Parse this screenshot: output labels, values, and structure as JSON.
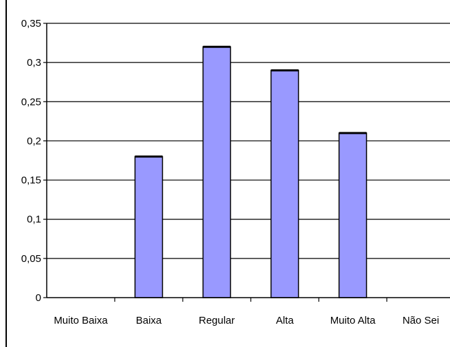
{
  "chart_data": {
    "type": "bar",
    "title": "",
    "xlabel": "",
    "ylabel": "",
    "categories": [
      "Muito Baixa",
      "Baixa",
      "Regular",
      "Alta",
      "Muito Alta",
      "Não Sei"
    ],
    "values": [
      0,
      0.18,
      0.32,
      0.29,
      0.21,
      0
    ],
    "ylim": [
      0,
      0.35
    ],
    "yticks": [
      0,
      0.05,
      0.1,
      0.15,
      0.2,
      0.25,
      0.3,
      0.35
    ],
    "ytick_labels": [
      "0",
      "0,05",
      "0,1",
      "0,15",
      "0,2",
      "0,25",
      "0,3",
      "0,35"
    ],
    "grid": true,
    "legend": "none",
    "bar_color": "#9999ff",
    "bar_edge_color": "#000000",
    "grid_color": "#000000"
  }
}
